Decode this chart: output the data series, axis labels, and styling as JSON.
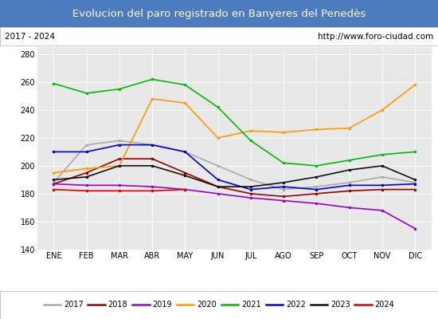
{
  "title": "Evolucion del paro registrado en Banyeres del Penedès",
  "subtitle_left": "2017 - 2024",
  "subtitle_right": "http://www.foro-ciudad.com",
  "title_bg_color": "#4c7bbe",
  "title_text_color": "#ffffff",
  "subtitle_bg_color": "#ffffff",
  "subtitle_text_color": "#000000",
  "plot_bg_color": "#e8e8e8",
  "months": [
    "ENE",
    "FEB",
    "MAR",
    "ABR",
    "MAY",
    "JUN",
    "JUL",
    "AGO",
    "SEP",
    "OCT",
    "NOV",
    "DIC"
  ],
  "ylim": [
    140,
    285
  ],
  "yticks": [
    140,
    160,
    180,
    200,
    220,
    240,
    260,
    280
  ],
  "series": {
    "2017": {
      "color": "#aaaaaa",
      "data": [
        188,
        215,
        218,
        215,
        210,
        200,
        190,
        183,
        185,
        188,
        192,
        188
      ]
    },
    "2018": {
      "color": "#990000",
      "data": [
        187,
        195,
        205,
        205,
        195,
        185,
        180,
        178,
        180,
        182,
        183,
        183
      ]
    },
    "2019": {
      "color": "#9900cc",
      "data": [
        187,
        186,
        186,
        185,
        183,
        180,
        177,
        175,
        173,
        170,
        168,
        155
      ]
    },
    "2020": {
      "color": "#ff9900",
      "data": [
        195,
        198,
        200,
        248,
        245,
        220,
        225,
        224,
        226,
        227,
        240,
        258
      ]
    },
    "2021": {
      "color": "#00bb00",
      "data": [
        259,
        252,
        255,
        262,
        258,
        242,
        218,
        202,
        200,
        204,
        208,
        210
      ]
    },
    "2022": {
      "color": "#0000dd",
      "data": [
        210,
        210,
        215,
        215,
        210,
        190,
        183,
        185,
        183,
        186,
        186,
        187
      ]
    },
    "2023": {
      "color": "#111111",
      "data": [
        190,
        192,
        200,
        200,
        193,
        185,
        185,
        188,
        192,
        197,
        200,
        190
      ]
    },
    "2024": {
      "color": "#dd0000",
      "data": [
        183,
        182,
        182,
        182,
        183,
        null,
        null,
        null,
        null,
        null,
        null,
        null
      ]
    }
  },
  "legend_order": [
    "2017",
    "2018",
    "2019",
    "2020",
    "2021",
    "2022",
    "2023",
    "2024"
  ]
}
